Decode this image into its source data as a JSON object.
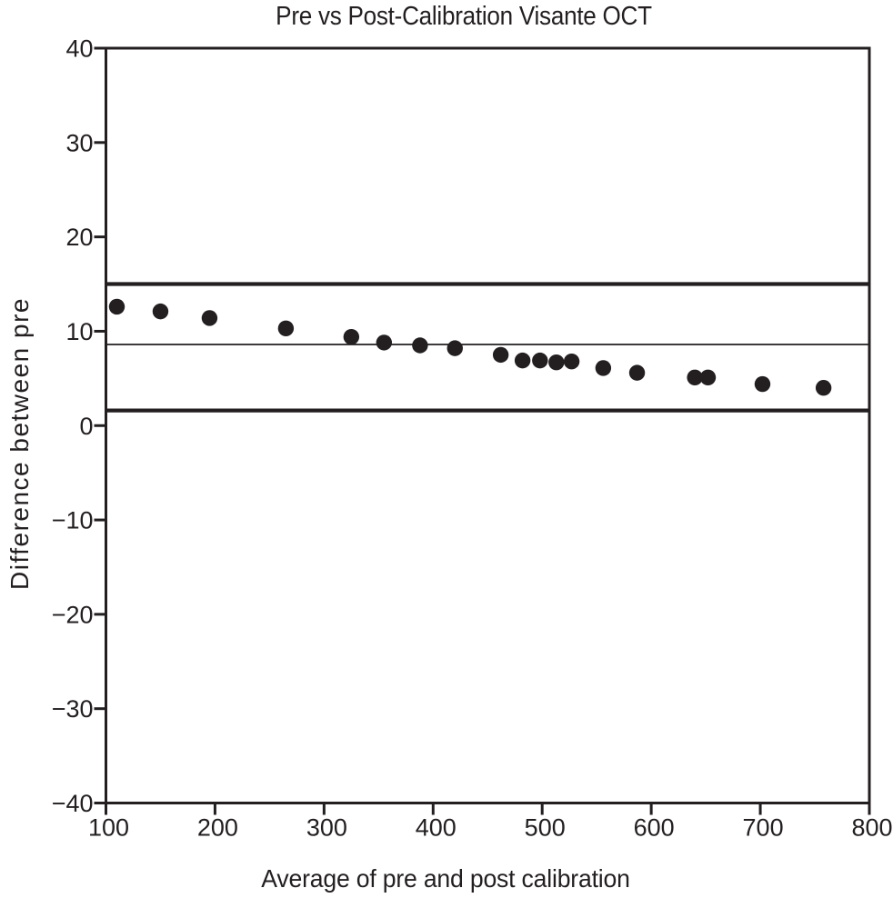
{
  "chart_data": {
    "type": "scatter",
    "title": "Pre vs Post-Calibration Visante OCT",
    "xlabel": "Average of pre and post calibration",
    "ylabel": "Difference between pre",
    "xlim": [
      100,
      800
    ],
    "ylim": [
      -40,
      40
    ],
    "grid": false,
    "legend": "none",
    "xticks": [
      {
        "v": 100,
        "label": "100"
      },
      {
        "v": 200,
        "label": "200"
      },
      {
        "v": 300,
        "label": "300"
      },
      {
        "v": 400,
        "label": "400"
      },
      {
        "v": 500,
        "label": "500"
      },
      {
        "v": 600,
        "label": "600"
      },
      {
        "v": 700,
        "label": "700"
      },
      {
        "v": 800,
        "label": "800"
      }
    ],
    "yticks": [
      {
        "v": 40,
        "label": "40"
      },
      {
        "v": 30,
        "label": "30"
      },
      {
        "v": 20,
        "label": "20"
      },
      {
        "v": 10,
        "label": "10"
      },
      {
        "v": 0,
        "label": "0"
      },
      {
        "v": -10,
        "label": "−10"
      },
      {
        "v": -20,
        "label": "−20"
      },
      {
        "v": -30,
        "label": "−30"
      },
      {
        "v": -40,
        "label": "−40"
      }
    ],
    "points": [
      [
        110,
        12.6
      ],
      [
        150,
        12.1
      ],
      [
        195,
        11.4
      ],
      [
        265,
        10.3
      ],
      [
        325,
        9.4
      ],
      [
        355,
        8.8
      ],
      [
        388,
        8.5
      ],
      [
        420,
        8.2
      ],
      [
        462,
        7.5
      ],
      [
        482,
        6.9
      ],
      [
        498,
        6.9
      ],
      [
        513,
        6.7
      ],
      [
        527,
        6.8
      ],
      [
        556,
        6.1
      ],
      [
        587,
        5.6
      ],
      [
        640,
        5.1
      ],
      [
        652,
        5.1
      ],
      [
        702,
        4.4
      ],
      [
        758,
        4.0
      ]
    ],
    "reference_lines": [
      {
        "name": "upper-limit-of-agreement",
        "value": 15.0,
        "style": "thick"
      },
      {
        "name": "mean-difference",
        "value": 8.6,
        "style": "thin"
      },
      {
        "name": "lower-limit-of-agreement",
        "value": 1.6,
        "style": "thick"
      }
    ],
    "point_color": "#231f20",
    "axis_color": "#231f20"
  }
}
